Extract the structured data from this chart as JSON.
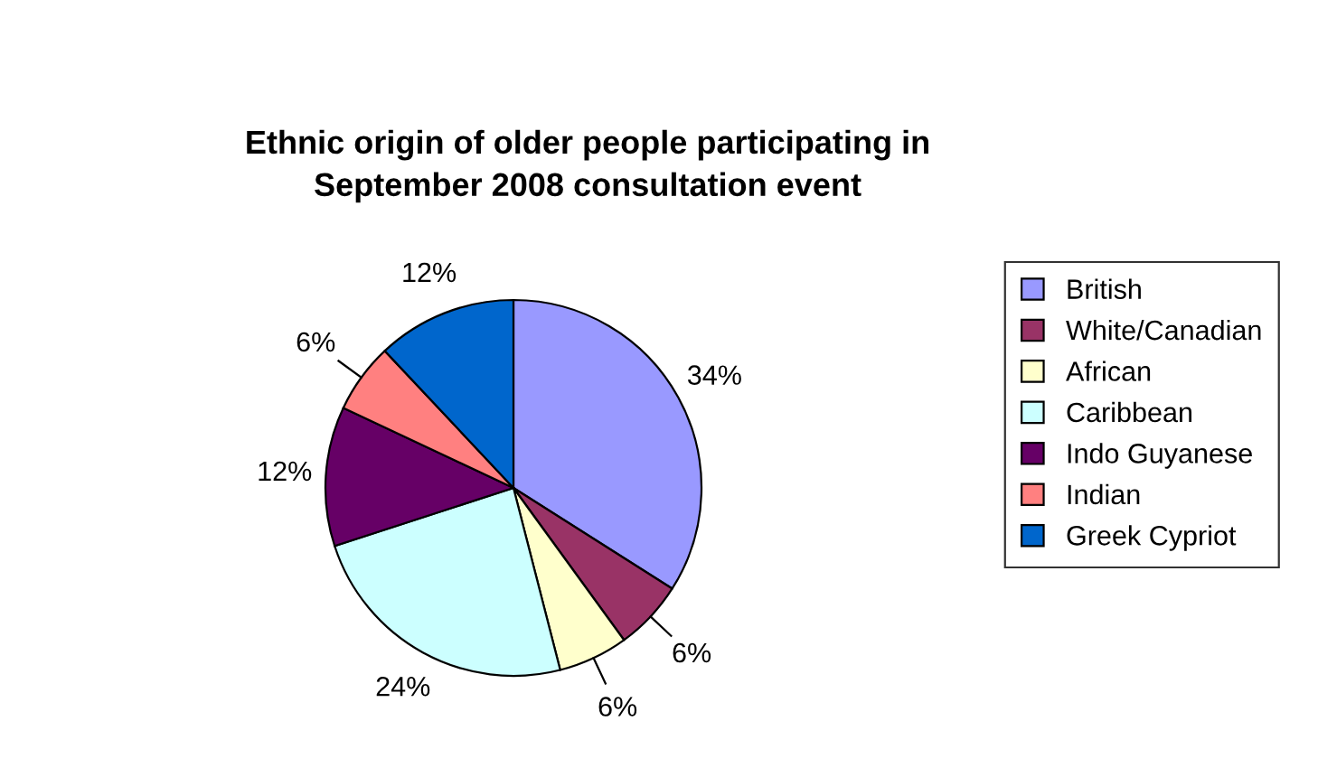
{
  "chart_data": {
    "type": "pie",
    "title": "Ethnic origin of older people participating in\nSeptember 2008 consultation event",
    "categories": [
      "British",
      "White/Canadian",
      "African",
      "Caribbean",
      "Indo Guyanese",
      "Indian",
      "Greek Cypriot"
    ],
    "values": [
      34,
      6,
      6,
      24,
      12,
      6,
      12
    ],
    "value_labels": [
      "34%",
      "6%",
      "6%",
      "24%",
      "12%",
      "6%",
      "12%"
    ],
    "colors": [
      "#9999ff",
      "#993366",
      "#ffffcc",
      "#ccffff",
      "#660066",
      "#ff8080",
      "#0066cc"
    ],
    "legend": "right"
  }
}
